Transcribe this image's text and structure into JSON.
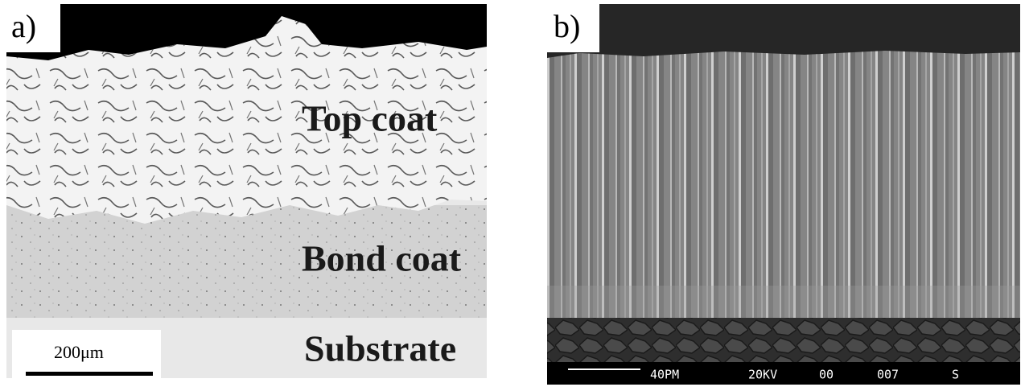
{
  "panels": [
    {
      "label": "a)",
      "annotations": [
        "Top coat",
        "Bond coat",
        "Substrate"
      ],
      "scale_bar": "200μm"
    },
    {
      "label": "b)",
      "info_bar": [
        "40PM",
        "20KV",
        "00",
        "007",
        "S"
      ]
    }
  ]
}
